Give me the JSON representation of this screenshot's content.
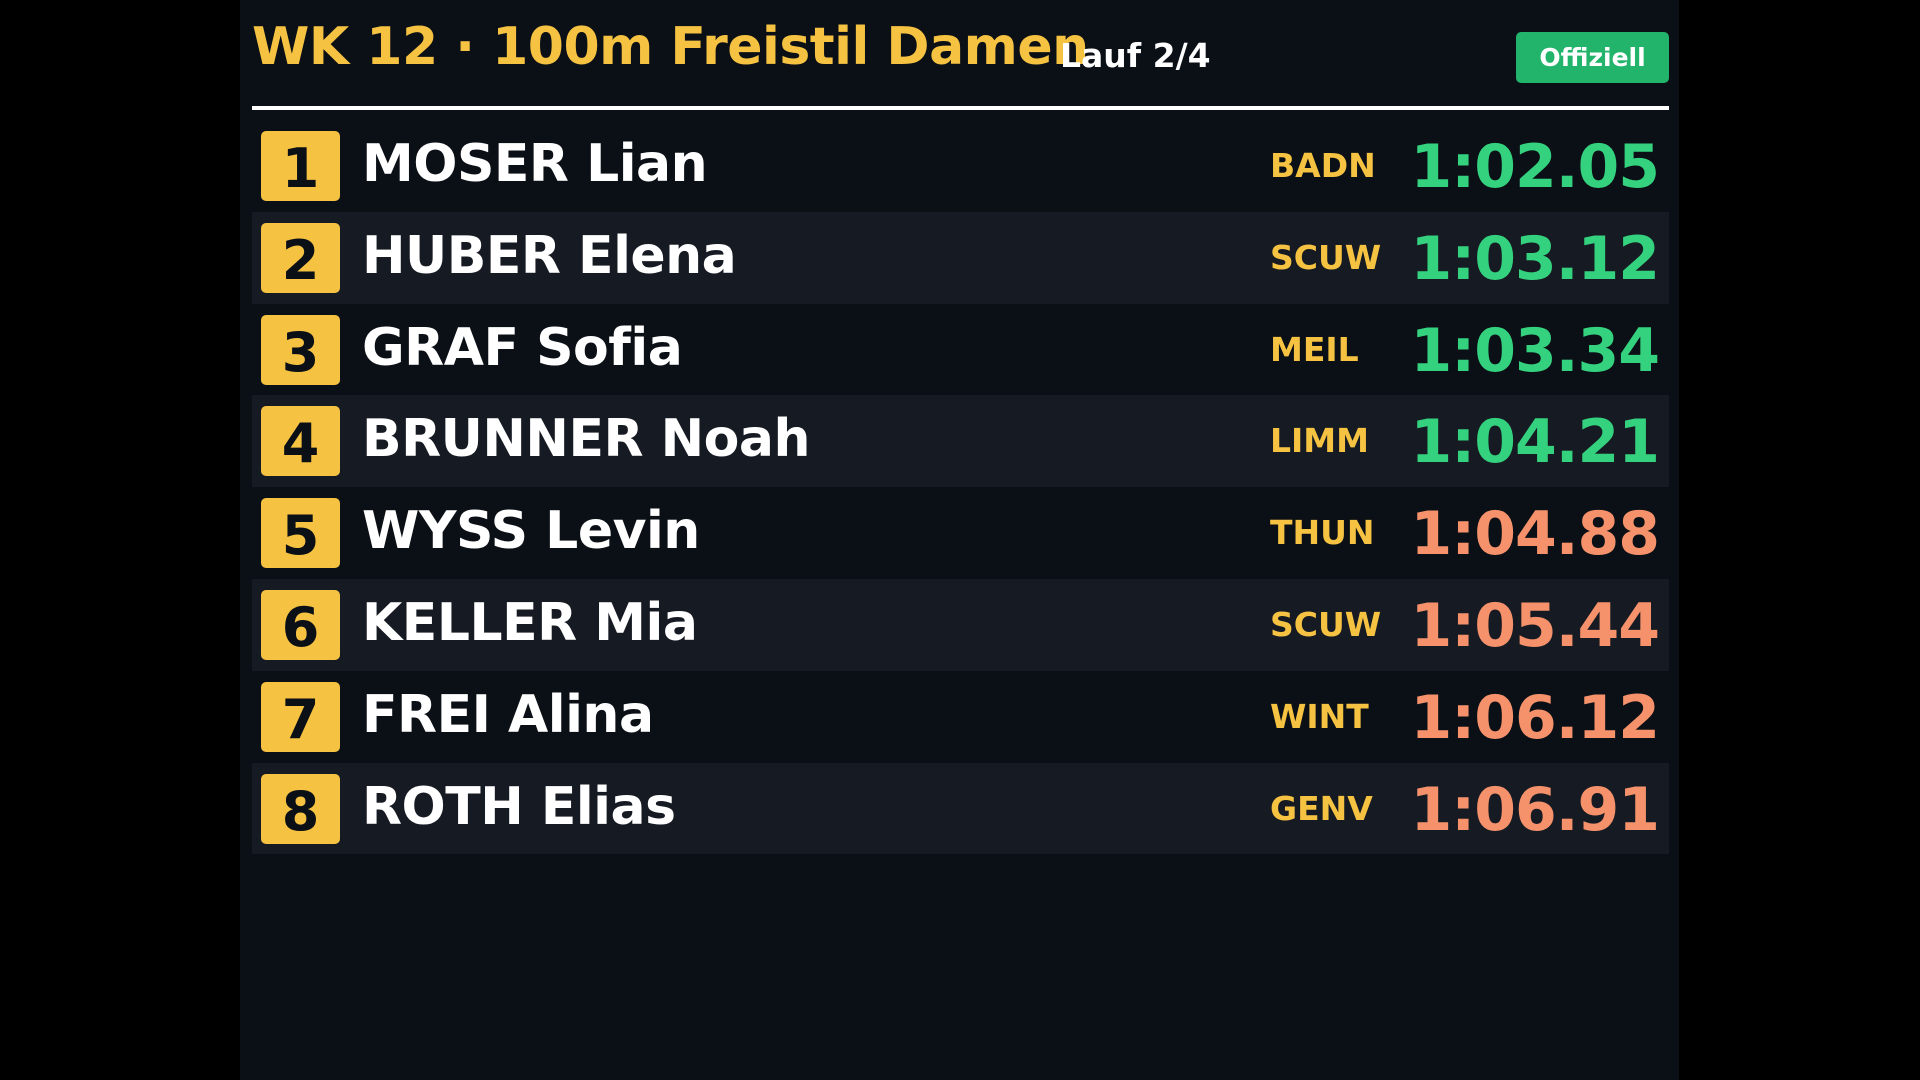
{
  "header": {
    "title": "WK 12 · 100m Freistil Damen",
    "heat": "Lauf 2/4",
    "status_badge": "Offiziell"
  },
  "colors": {
    "accent_yellow": "#f5c242",
    "time_green": "#34d27e",
    "time_orange": "#f5926b",
    "badge_green": "#22b46b",
    "background": "#0b0f16",
    "row_alt": "#161a22"
  },
  "results": [
    {
      "rank": "1",
      "name": "MOSER Lian",
      "club": "BADN",
      "time": "1:02.05",
      "time_color": "green"
    },
    {
      "rank": "2",
      "name": "HUBER Elena",
      "club": "SCUW",
      "time": "1:03.12",
      "time_color": "green"
    },
    {
      "rank": "3",
      "name": "GRAF Sofia",
      "club": "MEIL",
      "time": "1:03.34",
      "time_color": "green"
    },
    {
      "rank": "4",
      "name": "BRUNNER Noah",
      "club": "LIMM",
      "time": "1:04.21",
      "time_color": "green"
    },
    {
      "rank": "5",
      "name": "WYSS Levin",
      "club": "THUN",
      "time": "1:04.88",
      "time_color": "orange"
    },
    {
      "rank": "6",
      "name": "KELLER Mia",
      "club": "SCUW",
      "time": "1:05.44",
      "time_color": "orange"
    },
    {
      "rank": "7",
      "name": "FREI Alina",
      "club": "WINT",
      "time": "1:06.12",
      "time_color": "orange"
    },
    {
      "rank": "8",
      "name": "ROTH Elias",
      "club": "GENV",
      "time": "1:06.91",
      "time_color": "orange"
    }
  ]
}
